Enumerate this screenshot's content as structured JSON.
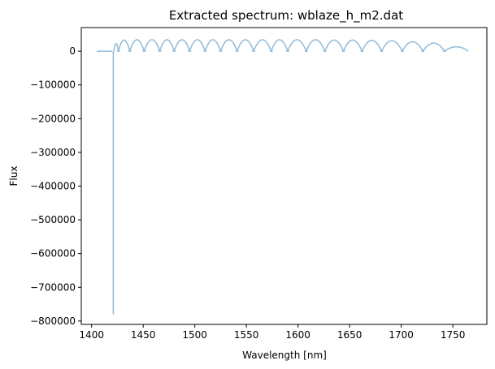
{
  "chart_data": {
    "type": "line",
    "title": "Extracted spectrum: wblaze_h_m2.dat",
    "xlabel": "Wavelength [nm]",
    "ylabel": "Flux",
    "xlim": [
      1390,
      1783
    ],
    "ylim": [
      -810000,
      70000
    ],
    "x_ticks": [
      1400,
      1450,
      1500,
      1550,
      1600,
      1650,
      1700,
      1750
    ],
    "x_tick_labels": [
      "1400",
      "1450",
      "1500",
      "1550",
      "1600",
      "1650",
      "1700",
      "1750"
    ],
    "y_ticks": [
      0,
      -100000,
      -200000,
      -300000,
      -400000,
      -500000,
      -600000,
      -700000,
      -800000
    ],
    "y_tick_labels": [
      "0",
      "−100000",
      "−200000",
      "−300000",
      "−400000",
      "−500000",
      "−600000",
      "−700000",
      "−800000"
    ],
    "grid": false,
    "legend": "none",
    "line_color": "#8fbcdb",
    "flat_segment": {
      "x": [
        1405,
        1420
      ],
      "y": [
        0,
        0
      ]
    },
    "spike": {
      "x": 1421,
      "y": -780000
    },
    "orders": [
      {
        "start": 1421.5,
        "end": 1426,
        "peak": 22000
      },
      {
        "start": 1426,
        "end": 1437,
        "peak": 33000
      },
      {
        "start": 1437,
        "end": 1451,
        "peak": 34000
      },
      {
        "start": 1451,
        "end": 1466,
        "peak": 34000
      },
      {
        "start": 1466,
        "end": 1480,
        "peak": 34000
      },
      {
        "start": 1480,
        "end": 1495,
        "peak": 34000
      },
      {
        "start": 1495,
        "end": 1510,
        "peak": 34000
      },
      {
        "start": 1510,
        "end": 1525,
        "peak": 34000
      },
      {
        "start": 1525,
        "end": 1541,
        "peak": 34000
      },
      {
        "start": 1541,
        "end": 1557,
        "peak": 34000
      },
      {
        "start": 1557,
        "end": 1574,
        "peak": 34000
      },
      {
        "start": 1574,
        "end": 1590,
        "peak": 34000
      },
      {
        "start": 1590,
        "end": 1608,
        "peak": 34000
      },
      {
        "start": 1608,
        "end": 1626,
        "peak": 34000
      },
      {
        "start": 1626,
        "end": 1644,
        "peak": 33000
      },
      {
        "start": 1644,
        "end": 1662,
        "peak": 33000
      },
      {
        "start": 1662,
        "end": 1681,
        "peak": 32000
      },
      {
        "start": 1681,
        "end": 1701,
        "peak": 31000
      },
      {
        "start": 1701,
        "end": 1721,
        "peak": 28000
      },
      {
        "start": 1721,
        "end": 1742,
        "peak": 24000
      },
      {
        "start": 1742,
        "end": 1765,
        "peak": 13000
      }
    ]
  }
}
